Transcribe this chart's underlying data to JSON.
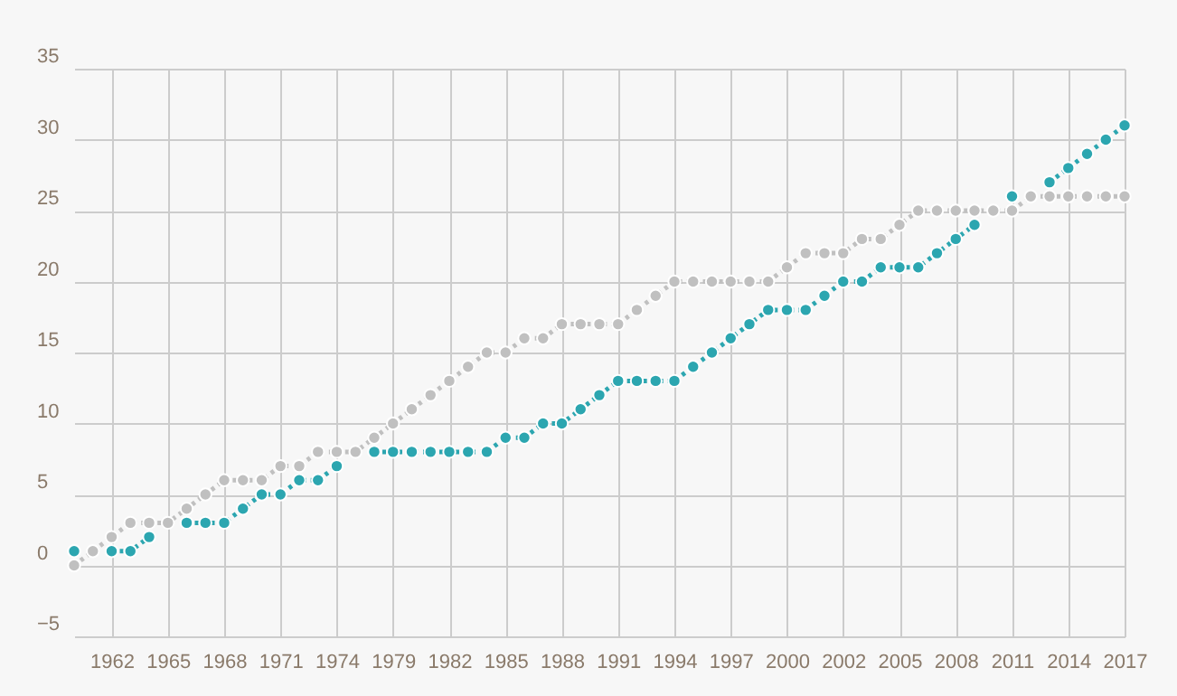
{
  "chart_data": {
    "type": "line",
    "categories": [
      null,
      null,
      "1962",
      null,
      null,
      "1965",
      null,
      null,
      "1968",
      null,
      null,
      "1971",
      null,
      null,
      "1974",
      null,
      null,
      "1979",
      null,
      null,
      "1982",
      null,
      null,
      "1985",
      null,
      null,
      "1988",
      null,
      null,
      "1991",
      null,
      null,
      "1994",
      null,
      null,
      "1997",
      null,
      null,
      "2000",
      null,
      null,
      "2002",
      null,
      null,
      "2005",
      null,
      null,
      "2008",
      null,
      null,
      "2011",
      null,
      null,
      "2014",
      null,
      null,
      "2017"
    ],
    "series": [
      {
        "color": "#2ca6b0",
        "values": [
          1,
          null,
          1,
          1,
          2,
          null,
          3,
          3,
          3,
          4,
          5,
          5,
          6,
          6,
          7,
          null,
          8,
          8,
          8,
          8,
          8,
          8,
          8,
          9,
          9,
          10,
          10,
          11,
          12,
          13,
          13,
          13,
          13,
          14,
          15,
          16,
          17,
          18,
          18,
          18,
          19,
          20,
          20,
          21,
          21,
          21,
          22,
          23,
          24,
          null,
          26,
          null,
          27,
          28,
          29,
          30,
          31
        ]
      },
      {
        "color": "#c0c0c0",
        "values": [
          0,
          1,
          2,
          3,
          3,
          3,
          4,
          5,
          6,
          6,
          6,
          7,
          7,
          8,
          8,
          8,
          9,
          10,
          11,
          12,
          13,
          14,
          15,
          15,
          16,
          16,
          17,
          17,
          17,
          17,
          18,
          19,
          20,
          20,
          20,
          20,
          20,
          20,
          21,
          22,
          22,
          22,
          23,
          23,
          24,
          25,
          25,
          25,
          25,
          25,
          25,
          26,
          26,
          26,
          26,
          26,
          26
        ]
      }
    ],
    "ylim": [
      -5,
      35
    ],
    "yticks": [
      -5,
      0,
      5,
      10,
      15,
      20,
      25,
      30,
      35
    ],
    "grid": true,
    "marker": "circle",
    "line_style": "dotted",
    "legend": false
  }
}
